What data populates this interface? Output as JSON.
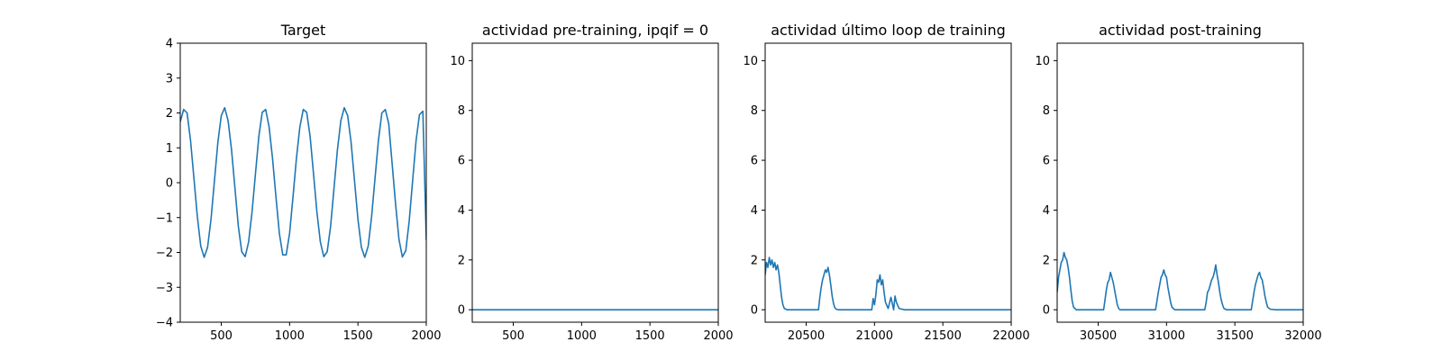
{
  "chart_data": [
    {
      "type": "line",
      "title": "Target",
      "xlabel": "",
      "ylabel": "",
      "xlim": [
        200,
        2000
      ],
      "ylim": [
        -4,
        4
      ],
      "xticks": [
        500,
        1000,
        1500,
        2000
      ],
      "xtick_labels": [
        "500",
        "1000",
        "1500",
        "2000"
      ],
      "yticks": [
        -4,
        -3,
        -2,
        -1,
        0,
        1,
        2,
        3,
        4
      ],
      "ytick_labels": [
        "−4",
        "−3",
        "−2",
        "−1",
        "0",
        "1",
        "2",
        "3",
        "4"
      ],
      "series": [
        {
          "color": "#1f77b4",
          "x": [
            200,
            225,
            250,
            275,
            300,
            325,
            350,
            375,
            400,
            425,
            450,
            475,
            500,
            525,
            550,
            575,
            600,
            625,
            650,
            675,
            700,
            725,
            750,
            775,
            800,
            825,
            850,
            875,
            900,
            925,
            950,
            975,
            1000,
            1025,
            1050,
            1075,
            1100,
            1125,
            1150,
            1175,
            1200,
            1225,
            1250,
            1275,
            1300,
            1325,
            1350,
            1375,
            1400,
            1425,
            1450,
            1475,
            1500,
            1525,
            1550,
            1575,
            1600,
            1625,
            1650,
            1675,
            1700,
            1725,
            1750,
            1775,
            1800,
            1825,
            1850,
            1875,
            1900,
            1925,
            1950,
            1975,
            2000
          ],
          "y": [
            1.75,
            2.1,
            2.0,
            1.22,
            0.13,
            -0.97,
            -1.82,
            -2.14,
            -1.85,
            -1.05,
            0.05,
            1.15,
            1.92,
            2.15,
            1.78,
            0.95,
            -0.15,
            -1.25,
            -1.98,
            -2.12,
            -1.7,
            -0.85,
            0.25,
            1.33,
            2.02,
            2.1,
            1.6,
            0.7,
            -0.4,
            -1.45,
            -2.07,
            -2.07,
            -1.45,
            -0.4,
            0.7,
            1.6,
            2.1,
            2.02,
            1.33,
            0.25,
            -0.85,
            -1.7,
            -2.12,
            -1.98,
            -1.25,
            -0.15,
            0.95,
            1.78,
            2.15,
            1.92,
            1.15,
            0.05,
            -1.05,
            -1.85,
            -2.14,
            -1.82,
            -0.97,
            0.13,
            1.22,
            2.0,
            2.1,
            1.7,
            0.55,
            -0.6,
            -1.62,
            -2.13,
            -1.95,
            -1.1,
            0.05,
            1.2,
            1.95,
            2.05,
            -1.65
          ]
        }
      ]
    },
    {
      "type": "line",
      "title": "actividad pre-training, ipqif = 0",
      "xlabel": "",
      "ylabel": "",
      "xlim": [
        200,
        2000
      ],
      "ylim": [
        -0.5,
        10.7
      ],
      "xticks": [
        500,
        1000,
        1500,
        2000
      ],
      "xtick_labels": [
        "500",
        "1000",
        "1500",
        "2000"
      ],
      "yticks": [
        0,
        2,
        4,
        6,
        8,
        10
      ],
      "ytick_labels": [
        "0",
        "2",
        "4",
        "6",
        "8",
        "10"
      ],
      "series": [
        {
          "color": "#1f77b4",
          "x": [
            200,
            2000
          ],
          "y": [
            0,
            0
          ]
        }
      ]
    },
    {
      "type": "line",
      "title": "actividad último loop de training",
      "xlabel": "",
      "ylabel": "",
      "xlim": [
        20200,
        22000
      ],
      "ylim": [
        -0.5,
        10.7
      ],
      "xticks": [
        20500,
        21000,
        21500,
        22000
      ],
      "xtick_labels": [
        "20500",
        "21000",
        "21500",
        "22000"
      ],
      "yticks": [
        0,
        2,
        4,
        6,
        8,
        10
      ],
      "ytick_labels": [
        "0",
        "2",
        "4",
        "6",
        "8",
        "10"
      ],
      "series": [
        {
          "color": "#1f77b4",
          "x": [
            20200,
            20210,
            20220,
            20230,
            20240,
            20250,
            20260,
            20270,
            20280,
            20290,
            20300,
            20310,
            20320,
            20330,
            20340,
            20360,
            20400,
            20500,
            20590,
            20600,
            20610,
            20620,
            20630,
            20640,
            20650,
            20660,
            20670,
            20680,
            20690,
            20700,
            20710,
            20720,
            20740,
            20780,
            20900,
            20980,
            20990,
            21000,
            21010,
            21020,
            21030,
            21040,
            21050,
            21060,
            21070,
            21080,
            21100,
            21120,
            21140,
            21150,
            21160,
            21180,
            21220,
            21300,
            22000
          ],
          "y": [
            1.4,
            1.9,
            1.7,
            2.1,
            1.8,
            2.0,
            1.7,
            1.9,
            1.6,
            1.8,
            1.5,
            1.0,
            0.5,
            0.2,
            0.05,
            0,
            0,
            0,
            0,
            0.5,
            0.9,
            1.2,
            1.4,
            1.6,
            1.5,
            1.7,
            1.4,
            1.0,
            0.55,
            0.25,
            0.08,
            0.02,
            0,
            0,
            0,
            0,
            0.45,
            0.2,
            0.6,
            1.2,
            1.1,
            1.4,
            1.0,
            1.2,
            0.7,
            0.3,
            0.05,
            0.5,
            0.0,
            0.55,
            0.3,
            0.05,
            0,
            0,
            0
          ]
        }
      ]
    },
    {
      "type": "line",
      "title": "actividad post-training",
      "xlabel": "",
      "ylabel": "",
      "xlim": [
        30200,
        32000
      ],
      "ylim": [
        -0.5,
        10.7
      ],
      "xticks": [
        30500,
        31000,
        31500,
        32000
      ],
      "xtick_labels": [
        "30500",
        "31000",
        "31500",
        "32000"
      ],
      "yticks": [
        0,
        2,
        4,
        6,
        8,
        10
      ],
      "ytick_labels": [
        "0",
        "2",
        "4",
        "6",
        "8",
        "10"
      ],
      "series": [
        {
          "color": "#1f77b4",
          "x": [
            30200,
            30210,
            30220,
            30230,
            30240,
            30250,
            30260,
            30270,
            30280,
            30290,
            30300,
            30310,
            30320,
            30340,
            30380,
            30500,
            30540,
            30550,
            30560,
            30570,
            30580,
            30590,
            30600,
            30610,
            30620,
            30630,
            30640,
            30650,
            30660,
            30670,
            30690,
            30720,
            30800,
            30920,
            30930,
            30940,
            30950,
            30960,
            30970,
            30980,
            30990,
            31000,
            31010,
            31020,
            31030,
            31040,
            31060,
            31100,
            31200,
            31280,
            31290,
            31300,
            31310,
            31320,
            31330,
            31340,
            31350,
            31360,
            31370,
            31380,
            31390,
            31400,
            31410,
            31420,
            31440,
            31480,
            31560,
            31620,
            31630,
            31640,
            31650,
            31660,
            31670,
            31680,
            31690,
            31700,
            31710,
            31720,
            31730,
            31740,
            31760,
            31800,
            32000
          ],
          "y": [
            0.7,
            1.3,
            1.6,
            1.9,
            2.0,
            2.3,
            2.1,
            2.0,
            1.7,
            1.3,
            0.8,
            0.35,
            0.1,
            0,
            0,
            0,
            0,
            0.4,
            0.8,
            1.1,
            1.2,
            1.5,
            1.3,
            1.1,
            0.8,
            0.5,
            0.2,
            0.05,
            0,
            0,
            0,
            0,
            0,
            0,
            0.35,
            0.7,
            1.0,
            1.3,
            1.4,
            1.6,
            1.4,
            1.3,
            0.9,
            0.6,
            0.3,
            0.1,
            0,
            0,
            0,
            0,
            0.3,
            0.7,
            0.8,
            1.0,
            1.2,
            1.3,
            1.5,
            1.8,
            1.4,
            1.1,
            0.7,
            0.4,
            0.2,
            0.05,
            0,
            0,
            0,
            0,
            0.35,
            0.7,
            1.0,
            1.2,
            1.4,
            1.5,
            1.3,
            1.2,
            0.9,
            0.55,
            0.3,
            0.1,
            0.02,
            0,
            0
          ]
        }
      ]
    }
  ]
}
